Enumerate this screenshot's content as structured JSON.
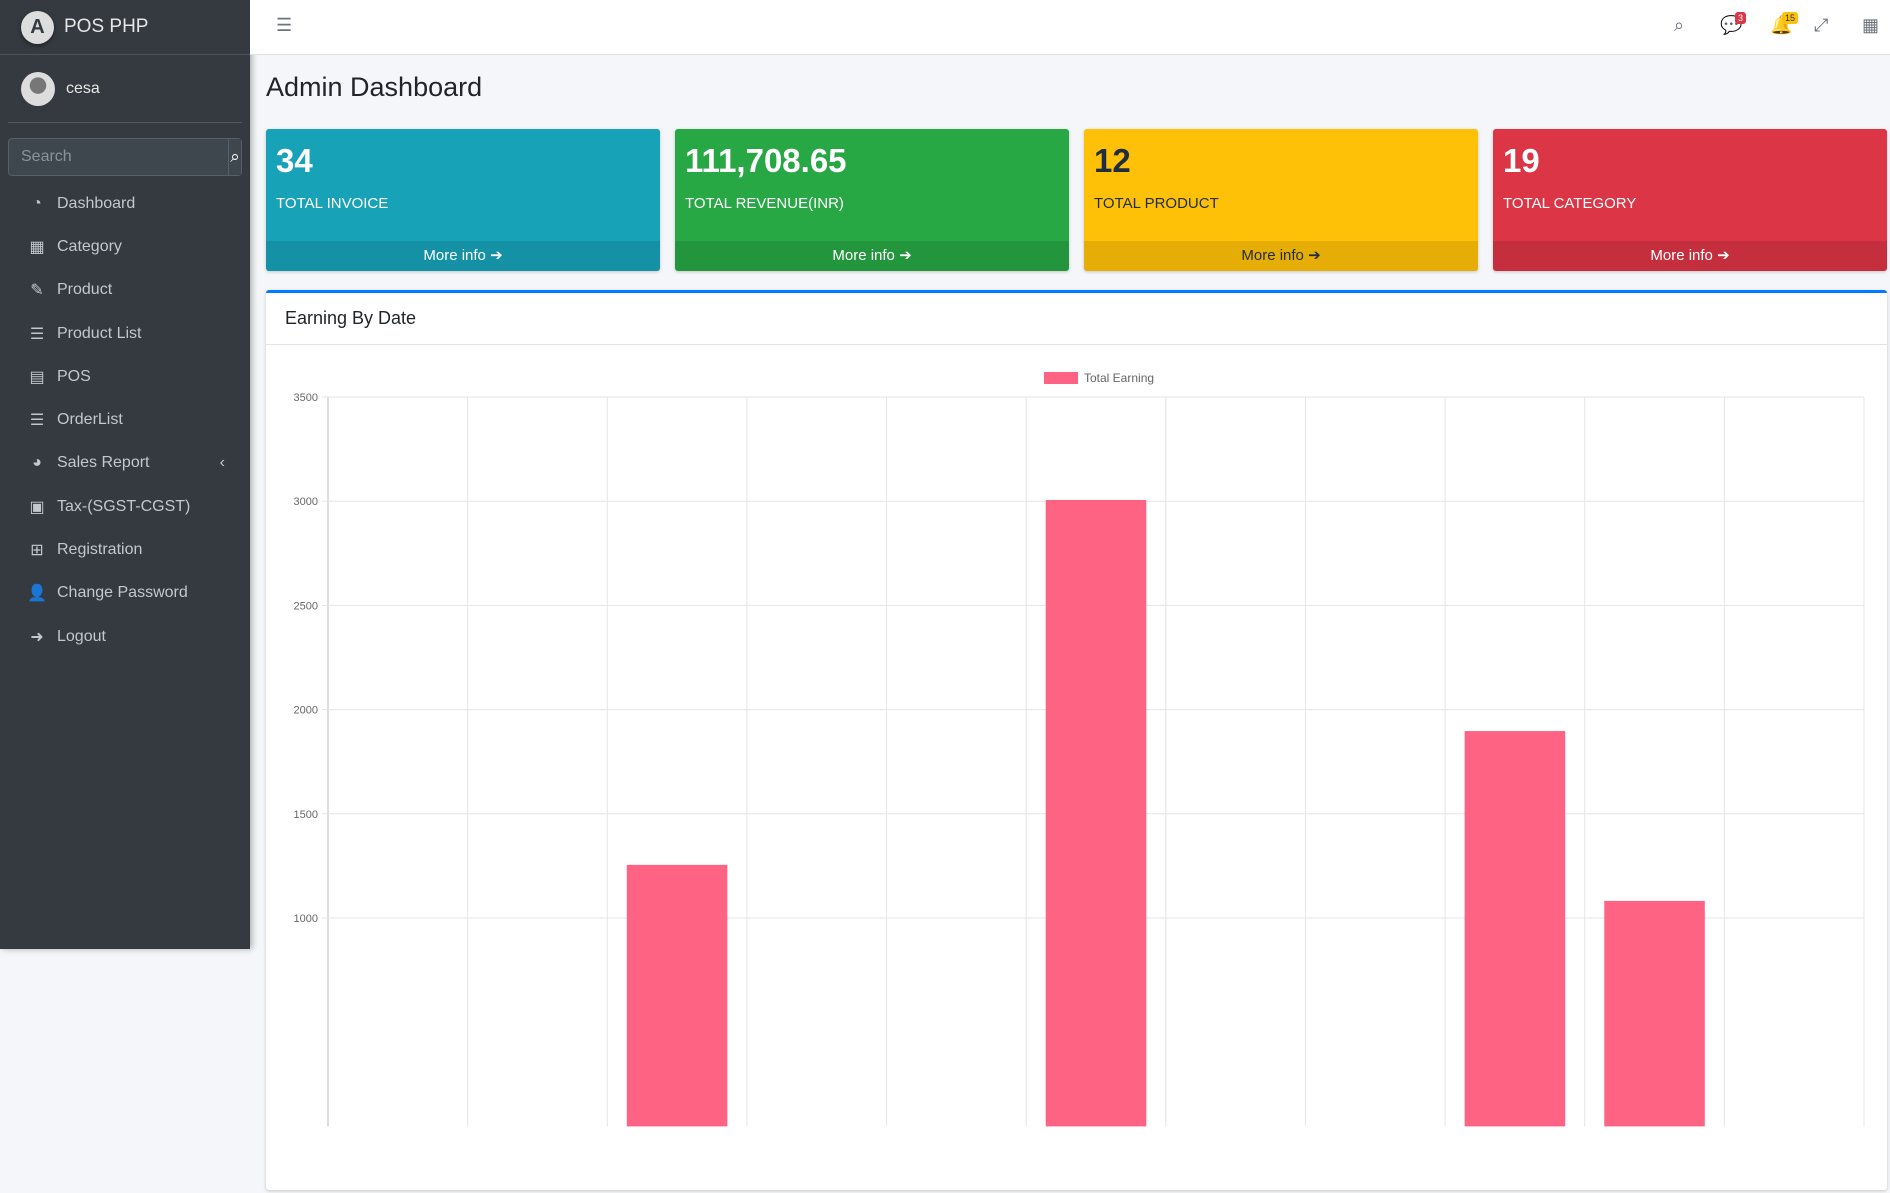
{
  "brand": {
    "name": "POS PHP",
    "logo_letter": "A"
  },
  "user": {
    "name": "cesa"
  },
  "search": {
    "placeholder": "Search"
  },
  "menu": [
    {
      "label": "Dashboard",
      "icon": "tachometer-icon",
      "glyph": "◔"
    },
    {
      "label": "Category",
      "icon": "table-icon",
      "glyph": "▦"
    },
    {
      "label": "Product",
      "icon": "edit-icon",
      "glyph": "✎"
    },
    {
      "label": "Product List",
      "icon": "list-icon",
      "glyph": "☰"
    },
    {
      "label": "POS",
      "icon": "book-icon",
      "glyph": "▤"
    },
    {
      "label": "OrderList",
      "icon": "list-icon",
      "glyph": "☰"
    },
    {
      "label": "Sales Report",
      "icon": "chart-pie-icon",
      "glyph": "◕"
    },
    {
      "label": "Tax-(SGST-CGST)",
      "icon": "calculator-icon",
      "glyph": "▣"
    },
    {
      "label": "Registration",
      "icon": "plus-square-icon",
      "glyph": "⊞"
    },
    {
      "label": "Change Password",
      "icon": "user-lock-icon",
      "glyph": "👤"
    },
    {
      "label": "Logout",
      "icon": "sign-out-icon",
      "glyph": "➜"
    }
  ],
  "topbar": {
    "messages_count": "3",
    "notifications_count": "15"
  },
  "page_title": "Admin Dashboard",
  "cards": [
    {
      "value": "34",
      "label": "TOTAL INVOICE",
      "more": "More info",
      "color": "#17a2b8"
    },
    {
      "value": "111,708.65",
      "label": "TOTAL REVENUE(INR)",
      "more": "More info",
      "color": "#28a745"
    },
    {
      "value": "12",
      "label": "TOTAL PRODUCT",
      "more": "More info",
      "color": "#ffc107"
    },
    {
      "value": "19",
      "label": "TOTAL CATEGORY",
      "more": "More info",
      "color": "#dc3545"
    }
  ],
  "chart_card": {
    "title": "Earning By Date"
  },
  "chart_data": {
    "type": "bar",
    "title": "Earning By Date",
    "legend": [
      "Total Earning"
    ],
    "legend_position": "top-center",
    "series": [
      {
        "name": "Total Earning",
        "color": "#ff6384",
        "values": [
          null,
          null,
          1255,
          null,
          null,
          3006,
          null,
          null,
          1897,
          1082,
          null
        ]
      }
    ],
    "y_ticks": [
      1000,
      1500,
      2000,
      2500,
      3000,
      3500
    ],
    "ylim": [
      0,
      3500
    ],
    "grid": true
  }
}
